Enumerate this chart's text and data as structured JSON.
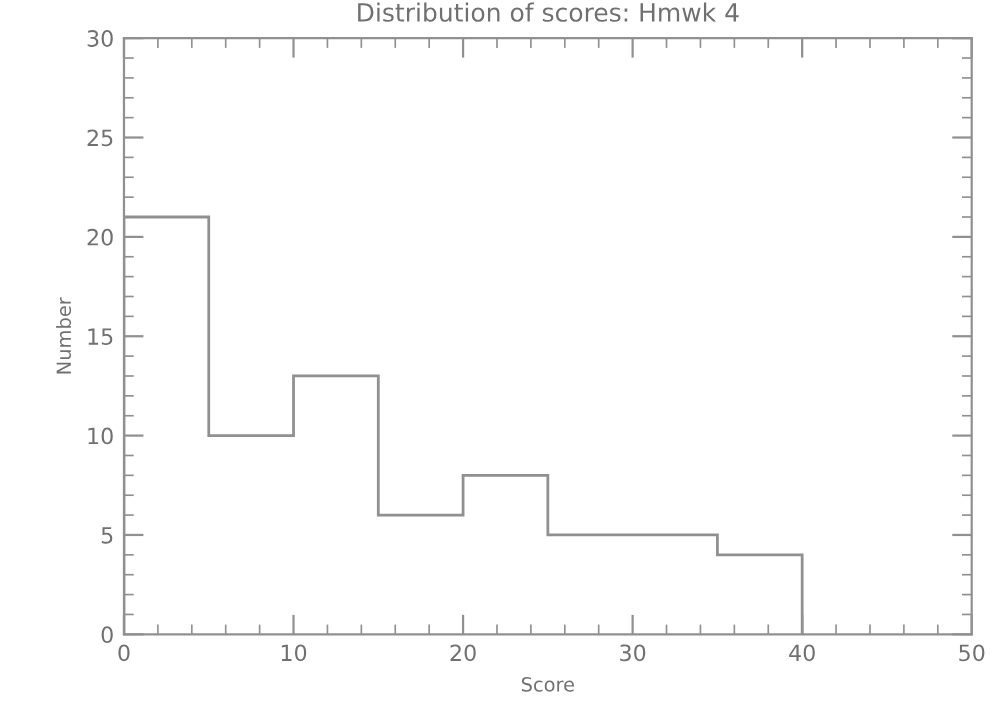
{
  "chart_data": {
    "type": "histogram",
    "title": "Distribution of scores: Hmwk 4",
    "xlabel": "Score",
    "ylabel": "Number",
    "bins": [
      0,
      5,
      10,
      15,
      20,
      25,
      30,
      35,
      40
    ],
    "values": [
      21,
      10,
      13,
      6,
      8,
      5,
      5,
      4
    ],
    "color": "#909090",
    "xlim": [
      0,
      50
    ],
    "ylim": [
      0,
      30
    ],
    "xticks": [
      0,
      10,
      20,
      30,
      40,
      50
    ],
    "yticks": [
      0,
      5,
      10,
      15,
      20,
      25,
      30
    ],
    "grid": false,
    "legend": false
  }
}
